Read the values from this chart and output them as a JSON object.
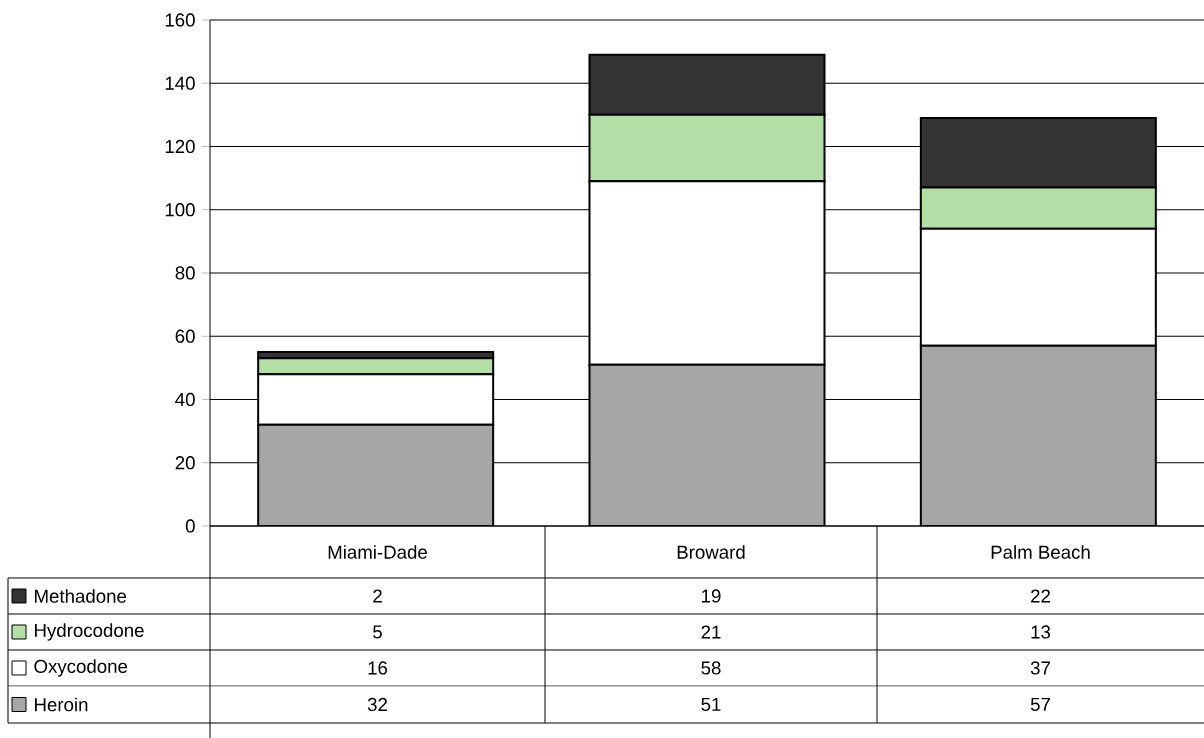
{
  "chart_data": {
    "type": "bar",
    "stacked": true,
    "categories": [
      "Miami-Dade",
      "Broward",
      "Palm Beach"
    ],
    "series": [
      {
        "name": "Heroin",
        "color": "#a6a6a6",
        "values": [
          32,
          51,
          57
        ]
      },
      {
        "name": "Oxycodone",
        "color": "#ffffff",
        "values": [
          16,
          58,
          37
        ]
      },
      {
        "name": "Hydrocodone",
        "color": "#b3dea6",
        "values": [
          5,
          21,
          13
        ]
      },
      {
        "name": "Methadone",
        "color": "#333333",
        "values": [
          2,
          19,
          22
        ]
      }
    ],
    "ylim": [
      0,
      160
    ],
    "yticks": [
      0,
      20,
      40,
      60,
      80,
      100,
      120,
      140,
      160
    ],
    "grid": "y",
    "legend": "bottom left",
    "data_labels": true
  }
}
